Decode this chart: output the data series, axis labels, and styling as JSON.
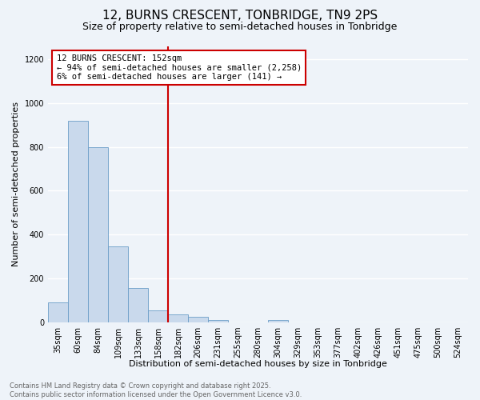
{
  "title": "12, BURNS CRESCENT, TONBRIDGE, TN9 2PS",
  "subtitle": "Size of property relative to semi-detached houses in Tonbridge",
  "xlabel": "Distribution of semi-detached houses by size in Tonbridge",
  "ylabel": "Number of semi-detached properties",
  "categories": [
    "35sqm",
    "60sqm",
    "84sqm",
    "109sqm",
    "133sqm",
    "158sqm",
    "182sqm",
    "206sqm",
    "231sqm",
    "255sqm",
    "280sqm",
    "304sqm",
    "329sqm",
    "353sqm",
    "377sqm",
    "402sqm",
    "426sqm",
    "451sqm",
    "475sqm",
    "500sqm",
    "524sqm"
  ],
  "values": [
    90,
    920,
    800,
    345,
    155,
    55,
    35,
    25,
    10,
    0,
    0,
    10,
    0,
    0,
    0,
    0,
    0,
    0,
    0,
    0,
    0
  ],
  "bar_color": "#c9d9ec",
  "bar_edge_color": "#6b9ec8",
  "vline_color": "#cc0000",
  "annotation_title": "12 BURNS CRESCENT: 152sqm",
  "annotation_line1": "← 94% of semi-detached houses are smaller (2,258)",
  "annotation_line2": "6% of semi-detached houses are larger (141) →",
  "annotation_box_color": "#ffffff",
  "annotation_edge_color": "#cc0000",
  "ylim": [
    0,
    1260
  ],
  "yticks": [
    0,
    200,
    400,
    600,
    800,
    1000,
    1200
  ],
  "footer_line1": "Contains HM Land Registry data © Crown copyright and database right 2025.",
  "footer_line2": "Contains public sector information licensed under the Open Government Licence v3.0.",
  "background_color": "#eef3f9",
  "grid_color": "#ffffff",
  "title_fontsize": 11,
  "subtitle_fontsize": 9,
  "axis_label_fontsize": 8,
  "tick_fontsize": 7,
  "footer_fontsize": 6,
  "annotation_fontsize": 7.5
}
